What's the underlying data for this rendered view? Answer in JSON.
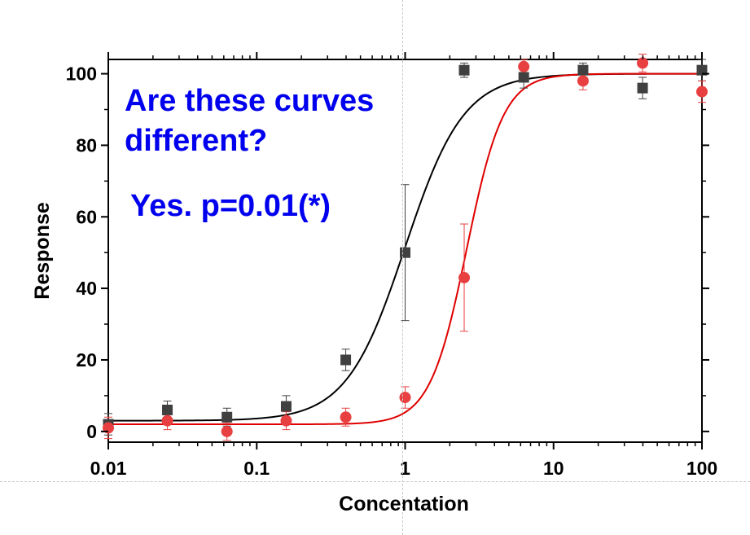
{
  "chart_data": {
    "type": "scatter",
    "x_scale": "log",
    "xlabel": "Concentation",
    "ylabel": "Response",
    "xlim": [
      0.01,
      100
    ],
    "ylim": [
      -3,
      104
    ],
    "x_ticks": [
      0.01,
      0.1,
      1,
      10,
      100
    ],
    "x_tick_labels": [
      "0.01",
      "0.1",
      "1",
      "10",
      "100"
    ],
    "y_ticks": [
      0,
      20,
      40,
      60,
      80,
      100
    ],
    "y_tick_labels": [
      "0",
      "20",
      "40",
      "60",
      "80",
      "100"
    ],
    "grid": false,
    "annotations": [
      "Are these curves",
      "different?",
      "Yes. p=0.01(*)"
    ],
    "series": [
      {
        "marker": "square",
        "color": "#404040",
        "fit_color": "#000000",
        "x": [
          0.01,
          0.025,
          0.063,
          0.158,
          0.398,
          1.0,
          2.5,
          6.3,
          15.8,
          39.8,
          100
        ],
        "y": [
          2,
          6,
          4,
          7,
          20,
          50,
          101,
          99,
          101,
          96,
          101
        ],
        "err": [
          3,
          2.5,
          2.5,
          3,
          3,
          19,
          2,
          3,
          2,
          3,
          3
        ],
        "fit": {
          "bottom": 3,
          "top": 100,
          "ec50": 1.0,
          "hill": 2.2
        }
      },
      {
        "marker": "circle",
        "color": "#e84040",
        "fit_color": "#e00000",
        "x": [
          0.01,
          0.025,
          0.063,
          0.158,
          0.398,
          1.0,
          2.5,
          6.3,
          15.8,
          39.8,
          100
        ],
        "y": [
          1,
          3,
          0,
          3,
          4,
          9.5,
          43,
          102,
          98,
          103,
          95
        ],
        "err": [
          3,
          2.5,
          2.5,
          2.5,
          2.5,
          3,
          15,
          2,
          2.5,
          2.5,
          3
        ],
        "fit": {
          "bottom": 2,
          "top": 100,
          "ec50": 2.6,
          "hill": 3.5
        }
      }
    ]
  }
}
